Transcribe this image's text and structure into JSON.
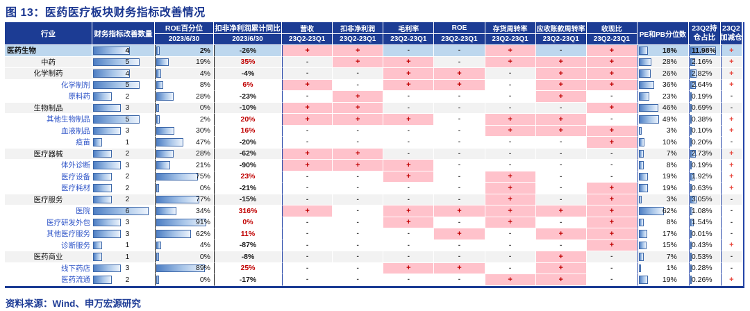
{
  "title": "图 13：医药医疗板块财务指标改善情况",
  "source": "资料来源：Wind、申万宏源研究",
  "colors": {
    "header_navy": "#1C3C94",
    "title_navy": "#1A3690",
    "pink_highlight": "#FFC2CB",
    "top_row_blue": "#BDD7EE",
    "level1_row_grey": "#F2F2F2",
    "plus_red": "#C00000",
    "minus_grey": "#444444",
    "sub_industry_blue": "#2F55C8",
    "bar_border_blue": "#3B66A8"
  },
  "header": {
    "industry": "行业",
    "count": "财务指标改善数量",
    "roe_pct": {
      "name": "ROE百分位",
      "sub": "2023/6/30"
    },
    "profit_yoy": {
      "name": "扣非净利润累计同比",
      "sub": "2023/6/30"
    },
    "metrics": [
      {
        "name": "营收",
        "sub": "23Q2-23Q1"
      },
      {
        "name": "扣非净利润",
        "sub": "23Q2-23Q1"
      },
      {
        "name": "毛利率",
        "sub": "23Q2-23Q1"
      },
      {
        "name": "ROE",
        "sub": "23Q2-23Q1"
      },
      {
        "name": "存货周转率",
        "sub": "23Q2-23Q1"
      },
      {
        "name": "应收账款周转率",
        "sub": "23Q2-23Q1"
      },
      {
        "name": "收现比",
        "sub": "23Q2-23Q1"
      }
    ],
    "pe_pb": "PE和PB分位数",
    "holding": {
      "line1": "23Q2持",
      "line2": "仓占比"
    },
    "change": {
      "line1": "23Q2",
      "line2": "加减仓"
    }
  },
  "rows": [
    {
      "industry": "医药生物",
      "level": 0,
      "count": 4,
      "roe_pct": "2%",
      "profit_yoy": "-26%",
      "metrics": [
        "+",
        "+",
        "-",
        "-",
        "+",
        "-",
        "+"
      ],
      "pe_pb": "18%",
      "holding": "11.98%",
      "change": "+"
    },
    {
      "industry": "中药",
      "level": 1,
      "count": 5,
      "roe_pct": "19%",
      "profit_yoy": "35%",
      "metrics": [
        "-",
        "+",
        "+",
        "-",
        "+",
        "+",
        "+"
      ],
      "pe_pb": "28%",
      "holding": "2.16%",
      "change": "+"
    },
    {
      "industry": "化学制药",
      "level": 1,
      "count": 4,
      "roe_pct": "4%",
      "profit_yoy": "-4%",
      "metrics": [
        "-",
        "-",
        "+",
        "+",
        "-",
        "+",
        "+"
      ],
      "pe_pb": "26%",
      "holding": "2.82%",
      "change": "+"
    },
    {
      "industry": "化学制剂",
      "level": 2,
      "count": 5,
      "roe_pct": "8%",
      "profit_yoy": "6%",
      "metrics": [
        "+",
        "-",
        "+",
        "+",
        "-",
        "+",
        "+"
      ],
      "pe_pb": "36%",
      "holding": "2.64%",
      "change": "+"
    },
    {
      "industry": "原料药",
      "level": 2,
      "count": 2,
      "roe_pct": "28%",
      "profit_yoy": "-23%",
      "metrics": [
        "-",
        "+",
        "-",
        "-",
        "-",
        "+",
        "-"
      ],
      "pe_pb": "23%",
      "holding": "0.19%",
      "change": "-"
    },
    {
      "industry": "生物制品",
      "level": 1,
      "count": 3,
      "roe_pct": "0%",
      "profit_yoy": "-10%",
      "metrics": [
        "+",
        "+",
        "-",
        "-",
        "-",
        "-",
        "+"
      ],
      "pe_pb": "46%",
      "holding": "0.69%",
      "change": "-"
    },
    {
      "industry": "其他生物制品",
      "level": 2,
      "count": 5,
      "roe_pct": "2%",
      "profit_yoy": "20%",
      "metrics": [
        "+",
        "+",
        "+",
        "-",
        "+",
        "+",
        "-"
      ],
      "pe_pb": "49%",
      "holding": "0.38%",
      "change": "+"
    },
    {
      "industry": "血液制品",
      "level": 2,
      "count": 3,
      "roe_pct": "30%",
      "profit_yoy": "16%",
      "metrics": [
        "-",
        "-",
        "-",
        "-",
        "+",
        "+",
        "+"
      ],
      "pe_pb": "3%",
      "holding": "0.10%",
      "change": "+"
    },
    {
      "industry": "疫苗",
      "level": 2,
      "count": 1,
      "roe_pct": "47%",
      "profit_yoy": "-20%",
      "metrics": [
        "-",
        "-",
        "-",
        "-",
        "-",
        "-",
        "+"
      ],
      "pe_pb": "10%",
      "holding": "0.20%",
      "change": "-"
    },
    {
      "industry": "医疗器械",
      "level": 1,
      "count": 2,
      "roe_pct": "28%",
      "profit_yoy": "-62%",
      "metrics": [
        "+",
        "+",
        "-",
        "-",
        "-",
        "-",
        "-"
      ],
      "pe_pb": "7%",
      "holding": "2.73%",
      "change": "+"
    },
    {
      "industry": "体外诊断",
      "level": 2,
      "count": 3,
      "roe_pct": "21%",
      "profit_yoy": "-90%",
      "metrics": [
        "+",
        "+",
        "+",
        "-",
        "-",
        "-",
        "-"
      ],
      "pe_pb": "8%",
      "holding": "0.19%",
      "change": "+"
    },
    {
      "industry": "医疗设备",
      "level": 2,
      "count": 2,
      "roe_pct": "75%",
      "profit_yoy": "23%",
      "metrics": [
        "-",
        "-",
        "+",
        "-",
        "+",
        "-",
        "-"
      ],
      "pe_pb": "19%",
      "holding": "1.92%",
      "change": "+"
    },
    {
      "industry": "医疗耗材",
      "level": 2,
      "count": 2,
      "roe_pct": "0%",
      "profit_yoy": "-21%",
      "metrics": [
        "-",
        "-",
        "-",
        "-",
        "+",
        "-",
        "+"
      ],
      "pe_pb": "19%",
      "holding": "0.63%",
      "change": "+"
    },
    {
      "industry": "医疗服务",
      "level": 1,
      "count": 2,
      "roe_pct": "77%",
      "profit_yoy": "-15%",
      "metrics": [
        "-",
        "-",
        "-",
        "-",
        "+",
        "-",
        "+"
      ],
      "pe_pb": "3%",
      "holding": "3.05%",
      "change": "-"
    },
    {
      "industry": "医院",
      "level": 2,
      "count": 6,
      "roe_pct": "34%",
      "profit_yoy": "316%",
      "metrics": [
        "+",
        "-",
        "+",
        "+",
        "+",
        "+",
        "+"
      ],
      "pe_pb": "62%",
      "holding": "1.08%",
      "change": "-"
    },
    {
      "industry": "医疗研发外包",
      "level": 2,
      "count": 3,
      "roe_pct": "91%",
      "profit_yoy": "0%",
      "metrics": [
        "-",
        "-",
        "+",
        "-",
        "+",
        "-",
        "+"
      ],
      "pe_pb": "8%",
      "holding": "1.54%",
      "change": "-"
    },
    {
      "industry": "其他医疗服务",
      "level": 2,
      "count": 3,
      "roe_pct": "62%",
      "profit_yoy": "11%",
      "metrics": [
        "-",
        "-",
        "-",
        "+",
        "-",
        "+",
        "+"
      ],
      "pe_pb": "17%",
      "holding": "0.01%",
      "change": "-"
    },
    {
      "industry": "诊断服务",
      "level": 2,
      "count": 1,
      "roe_pct": "4%",
      "profit_yoy": "-87%",
      "metrics": [
        "-",
        "-",
        "-",
        "-",
        "-",
        "-",
        "+"
      ],
      "pe_pb": "15%",
      "holding": "0.43%",
      "change": "+"
    },
    {
      "industry": "医药商业",
      "level": 1,
      "count": 1,
      "roe_pct": "0%",
      "profit_yoy": "-8%",
      "metrics": [
        "-",
        "-",
        "-",
        "-",
        "-",
        "+",
        "-"
      ],
      "pe_pb": "7%",
      "holding": "0.53%",
      "change": "-"
    },
    {
      "industry": "线下药店",
      "level": 2,
      "count": 3,
      "roe_pct": "89%",
      "profit_yoy": "25%",
      "metrics": [
        "-",
        "-",
        "+",
        "+",
        "-",
        "+",
        "-"
      ],
      "pe_pb": "1%",
      "holding": "0.28%",
      "change": "-"
    },
    {
      "industry": "医药流通",
      "level": 2,
      "count": 2,
      "roe_pct": "0%",
      "profit_yoy": "-17%",
      "metrics": [
        "-",
        "-",
        "-",
        "-",
        "+",
        "+",
        "-"
      ],
      "pe_pb": "19%",
      "holding": "0.26%",
      "change": "+"
    }
  ]
}
